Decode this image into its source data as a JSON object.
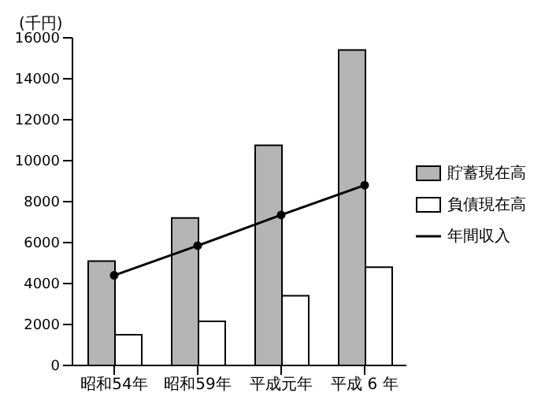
{
  "chart_data": {
    "type": "bar",
    "ylabel": "(千円)",
    "categories": [
      "昭和54年",
      "昭和59年",
      "平成元年",
      "平成 6 年"
    ],
    "series": [
      {
        "name": "貯蓄現在高",
        "color": "#b4b4b4",
        "values": [
          5100,
          7200,
          10750,
          15400
        ]
      },
      {
        "name": "負債現在高",
        "color": "#ffffff",
        "values": [
          1500,
          2150,
          3400,
          4800
        ]
      },
      {
        "name": "年間収入",
        "type": "line",
        "color": "#000000",
        "values": [
          4400,
          5850,
          7350,
          8800
        ],
        "marker": "circle"
      }
    ],
    "ylim": [
      0,
      16000
    ],
    "yticks": [
      0,
      2000,
      4000,
      6000,
      8000,
      10000,
      12000,
      14000,
      16000
    ],
    "grid": false,
    "legend": "right"
  }
}
